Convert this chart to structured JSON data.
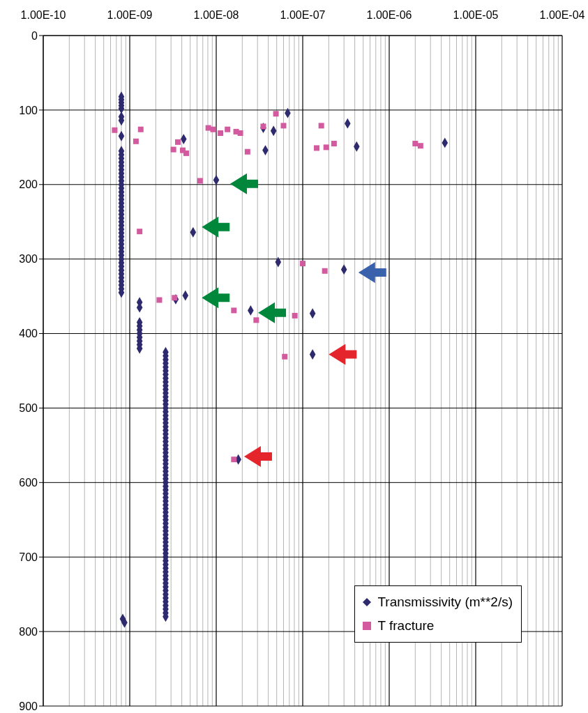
{
  "chart_data": {
    "type": "scatter",
    "log": "x",
    "grid": true,
    "legend": "bottom right",
    "xlim": [
      1e-10,
      0.0001
    ],
    "xticks": [
      {
        "value": 1e-10,
        "label": "1.00E-10"
      },
      {
        "value": 2e-10,
        "label": null
      },
      {
        "value": 3e-10,
        "label": null
      },
      {
        "value": 4e-10,
        "label": null
      },
      {
        "value": 5e-10,
        "label": null
      },
      {
        "value": 6e-10,
        "label": null
      },
      {
        "value": 7e-10,
        "label": null
      },
      {
        "value": 8e-10,
        "label": null
      },
      {
        "value": 9e-10,
        "label": null
      },
      {
        "value": 1e-09,
        "label": "1.00E-09"
      },
      {
        "value": 2e-09,
        "label": null
      },
      {
        "value": 3e-09,
        "label": null
      },
      {
        "value": 4e-09,
        "label": null
      },
      {
        "value": 5e-09,
        "label": null
      },
      {
        "value": 6e-09,
        "label": null
      },
      {
        "value": 7e-09,
        "label": null
      },
      {
        "value": 8e-09,
        "label": null
      },
      {
        "value": 9e-09,
        "label": null
      },
      {
        "value": 1e-08,
        "label": "1.00E-08"
      },
      {
        "value": 2e-08,
        "label": null
      },
      {
        "value": 3e-08,
        "label": null
      },
      {
        "value": 4e-08,
        "label": null
      },
      {
        "value": 5e-08,
        "label": null
      },
      {
        "value": 6e-08,
        "label": null
      },
      {
        "value": 7e-08,
        "label": null
      },
      {
        "value": 8e-08,
        "label": null
      },
      {
        "value": 9e-08,
        "label": null
      },
      {
        "value": 1e-07,
        "label": "1.00E-07"
      },
      {
        "value": 2e-07,
        "label": null
      },
      {
        "value": 3e-07,
        "label": null
      },
      {
        "value": 4e-07,
        "label": null
      },
      {
        "value": 5e-07,
        "label": null
      },
      {
        "value": 6e-07,
        "label": null
      },
      {
        "value": 7e-07,
        "label": null
      },
      {
        "value": 8e-07,
        "label": null
      },
      {
        "value": 9e-07,
        "label": null
      },
      {
        "value": 1e-06,
        "label": "1.00E-06"
      },
      {
        "value": 2e-06,
        "label": null
      },
      {
        "value": 3e-06,
        "label": null
      },
      {
        "value": 4e-06,
        "label": null
      },
      {
        "value": 5e-06,
        "label": null
      },
      {
        "value": 6e-06,
        "label": null
      },
      {
        "value": 7e-06,
        "label": null
      },
      {
        "value": 8e-06,
        "label": null
      },
      {
        "value": 9e-06,
        "label": null
      },
      {
        "value": 1e-05,
        "label": "1.00E-05"
      },
      {
        "value": 2e-05,
        "label": null
      },
      {
        "value": 3e-05,
        "label": null
      },
      {
        "value": 4e-05,
        "label": null
      },
      {
        "value": 5e-05,
        "label": null
      },
      {
        "value": 6e-05,
        "label": null
      },
      {
        "value": 7e-05,
        "label": null
      },
      {
        "value": 8e-05,
        "label": null
      },
      {
        "value": 9e-05,
        "label": null
      },
      {
        "value": 0.0001,
        "label": "1.00E-04"
      }
    ],
    "ylim": [
      900,
      0
    ],
    "yticks": [
      0,
      100,
      200,
      300,
      400,
      500,
      600,
      700,
      800,
      900
    ],
    "series": [
      {
        "name": "Transmissivity (m**2/s)",
        "color": "#2e2a6e",
        "marker": "diamond",
        "x": [
          8e-10,
          8e-10,
          8e-10,
          8e-10,
          8e-10,
          8e-10,
          8e-10,
          8e-10,
          8e-10,
          8e-10,
          8e-10,
          8e-10,
          8e-10,
          8e-10,
          8e-10,
          8e-10,
          8e-10,
          8e-10,
          8e-10,
          8e-10,
          8e-10,
          8e-10,
          8e-10,
          8e-10,
          8e-10,
          8e-10,
          8e-10,
          8e-10,
          8e-10,
          8e-10,
          8e-10,
          8e-10,
          8e-10,
          8e-10,
          8e-10,
          8e-10,
          8e-10,
          8e-10,
          8e-10,
          8e-10,
          8e-10,
          8e-10,
          8e-10,
          8e-10,
          8e-10,
          8e-10,
          8e-10,
          1.3e-09,
          1.3e-09,
          1.3e-09,
          1.3e-09,
          1.3e-09,
          1.3e-09,
          1.3e-09,
          1.3e-09,
          1.3e-09,
          1.3e-09,
          2.6e-09,
          2.6e-09,
          2.6e-09,
          2.6e-09,
          2.6e-09,
          2.6e-09,
          2.6e-09,
          2.6e-09,
          2.6e-09,
          2.6e-09,
          2.6e-09,
          2.6e-09,
          2.6e-09,
          2.6e-09,
          2.6e-09,
          2.6e-09,
          2.6e-09,
          2.6e-09,
          2.6e-09,
          2.6e-09,
          2.6e-09,
          2.6e-09,
          2.6e-09,
          2.6e-09,
          2.6e-09,
          2.6e-09,
          2.6e-09,
          2.6e-09,
          2.6e-09,
          2.6e-09,
          2.6e-09,
          2.6e-09,
          2.6e-09,
          2.6e-09,
          2.6e-09,
          2.6e-09,
          2.6e-09,
          2.6e-09,
          2.6e-09,
          2.6e-09,
          2.6e-09,
          2.6e-09,
          2.6e-09,
          2.6e-09,
          2.6e-09,
          2.6e-09,
          2.6e-09,
          2.6e-09,
          2.6e-09,
          2.6e-09,
          2.6e-09,
          2.6e-09,
          2.6e-09,
          2.6e-09,
          2.6e-09,
          2.6e-09,
          2.6e-09,
          2.6e-09,
          2.6e-09,
          2.6e-09,
          2.6e-09,
          2.6e-09,
          2.6e-09,
          2.6e-09,
          2.6e-09,
          2.6e-09,
          2.6e-09,
          2.6e-09,
          2.6e-09,
          2.6e-09,
          2.6e-09,
          2.6e-09,
          8.3e-10,
          8.7e-10,
          4.2e-09,
          1e-08,
          3.7e-08,
          3.5e-08,
          4.6e-08,
          6.7e-08,
          3.3e-07,
          4.2e-07,
          4.4e-06,
          5.4e-09,
          5.2e-08,
          3e-07,
          4.4e-09,
          3.4e-09,
          2.5e-08,
          1.3e-07,
          1.3e-07,
          1.8e-08
        ],
        "values": [
          82,
          86,
          90,
          94,
          98,
          109,
          114,
          135,
          155,
          160,
          165,
          170,
          175,
          180,
          185,
          190,
          195,
          200,
          205,
          210,
          215,
          220,
          225,
          230,
          235,
          240,
          245,
          250,
          255,
          260,
          265,
          270,
          275,
          280,
          285,
          290,
          295,
          300,
          305,
          310,
          315,
          320,
          325,
          330,
          335,
          340,
          345,
          358,
          365,
          385,
          390,
          395,
          400,
          405,
          410,
          415,
          420,
          425,
          430,
          435,
          440,
          445,
          450,
          455,
          460,
          465,
          470,
          475,
          480,
          485,
          490,
          495,
          500,
          505,
          510,
          515,
          520,
          525,
          530,
          535,
          540,
          545,
          550,
          555,
          560,
          565,
          570,
          575,
          580,
          585,
          590,
          595,
          600,
          605,
          610,
          615,
          620,
          625,
          630,
          635,
          640,
          645,
          650,
          655,
          660,
          665,
          670,
          675,
          680,
          685,
          690,
          695,
          700,
          705,
          710,
          715,
          720,
          725,
          730,
          735,
          740,
          745,
          750,
          755,
          760,
          765,
          770,
          775,
          780,
          783,
          788,
          139,
          194,
          154,
          124,
          128,
          104,
          118,
          149,
          144,
          264,
          304,
          314,
          349,
          354,
          369,
          373,
          428,
          569
        ]
      },
      {
        "name": "T fracture",
        "color": "#d45aa0",
        "marker": "square",
        "x": [
          6.7e-10,
          1.34e-09,
          1.18e-09,
          3.6e-09,
          3.2e-09,
          4.1e-09,
          4.5e-09,
          6.5e-09,
          8.1e-09,
          9.2e-09,
          1.12e-08,
          1.35e-08,
          1.7e-08,
          1.9e-08,
          2.3e-08,
          3.5e-08,
          4.9e-08,
          6e-08,
          1.64e-07,
          1.45e-07,
          1.87e-07,
          2.3e-07,
          2e-06,
          2.3e-06,
          1.3e-09,
          1e-07,
          1.8e-07,
          2.2e-09,
          3.3e-09,
          1.6e-08,
          2.9e-08,
          8.1e-08,
          6.2e-08,
          1.6e-08
        ],
        "values": [
          127,
          126,
          142,
          143,
          153,
          154,
          158,
          195,
          124,
          126,
          131,
          126,
          129,
          131,
          156,
          122,
          105,
          121,
          121,
          151,
          150,
          145,
          145,
          148,
          263,
          306,
          316,
          355,
          352,
          369,
          382,
          376,
          431,
          569
        ]
      }
    ]
  }
}
